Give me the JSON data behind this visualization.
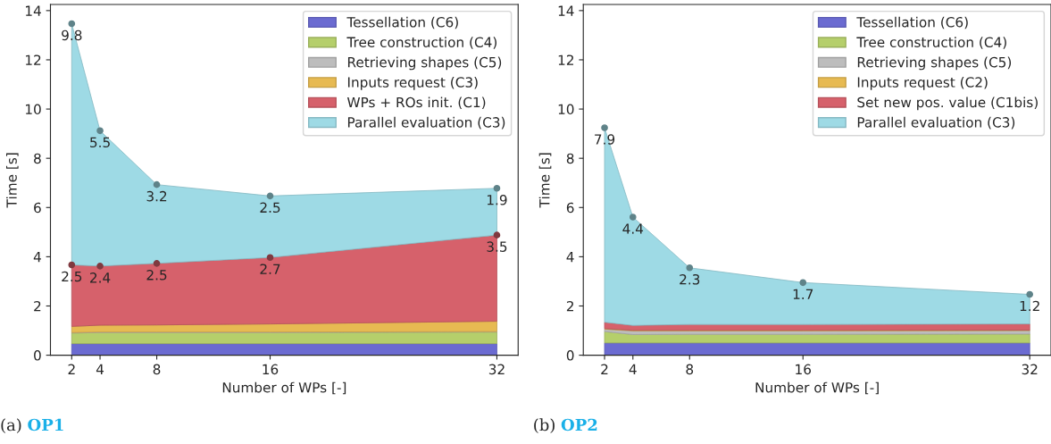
{
  "chart_data": [
    {
      "type": "area",
      "stacked": true,
      "title": "(a) OP1",
      "xlabel": "Number of WPs [-]",
      "ylabel": "Time [s]",
      "x": [
        2,
        4,
        8,
        16,
        32
      ],
      "xlim": [
        0.5,
        33.5
      ],
      "xticks": [
        2,
        4,
        8,
        16,
        32
      ],
      "ylim": [
        0,
        14.25
      ],
      "yticks": [
        0,
        2,
        4,
        6,
        8,
        10,
        12,
        14
      ],
      "legend": "top right",
      "grid": false,
      "series": [
        {
          "name": "Tessellation (C6)",
          "color": "#6b6bd1",
          "values": [
            0.47,
            0.47,
            0.47,
            0.47,
            0.47
          ]
        },
        {
          "name": "Tree construction (C4)",
          "color": "#b5cf6b",
          "values": [
            0.43,
            0.45,
            0.45,
            0.45,
            0.47
          ]
        },
        {
          "name": "Retrieving shapes (C5)",
          "color": "#bdbdbd",
          "values": [
            0.02,
            0.02,
            0.02,
            0.02,
            0.02
          ]
        },
        {
          "name": "Inputs request (C3)",
          "color": "#e7ba52",
          "values": [
            0.25,
            0.28,
            0.29,
            0.33,
            0.42
          ]
        },
        {
          "name": "WPs + ROs init. (C1)",
          "color": "#d6616b",
          "values": [
            2.5,
            2.4,
            2.5,
            2.7,
            3.5
          ],
          "value_labels": [
            "2.5",
            "2.4",
            "2.5",
            "2.7",
            "3.5"
          ],
          "marker": "circle"
        },
        {
          "name": "Parallel evaluation (C3)",
          "color": "#9edae5",
          "values": [
            9.8,
            5.5,
            3.2,
            2.5,
            1.9
          ],
          "value_labels": [
            "9.8",
            "5.5",
            "3.2",
            "2.5",
            "1.9"
          ],
          "marker": "circle"
        }
      ]
    },
    {
      "type": "area",
      "stacked": true,
      "title": "(b) OP2",
      "xlabel": "Number of WPs [-]",
      "ylabel": "Time [s]",
      "x": [
        2,
        4,
        8,
        16,
        32
      ],
      "xlim": [
        0.5,
        33.5
      ],
      "xticks": [
        2,
        4,
        8,
        16,
        32
      ],
      "ylim": [
        0,
        14.25
      ],
      "yticks": [
        0,
        2,
        4,
        6,
        8,
        10,
        12,
        14
      ],
      "legend": "top right",
      "grid": false,
      "series": [
        {
          "name": "Tessellation (C6)",
          "color": "#6b6bd1",
          "values": [
            0.5,
            0.5,
            0.5,
            0.5,
            0.5
          ]
        },
        {
          "name": "Tree construction (C4)",
          "color": "#b5cf6b",
          "values": [
            0.46,
            0.34,
            0.35,
            0.35,
            0.36
          ]
        },
        {
          "name": "Retrieving shapes (C5)",
          "color": "#bdbdbd",
          "values": [
            0.1,
            0.15,
            0.14,
            0.14,
            0.14
          ]
        },
        {
          "name": "Inputs request (C2)",
          "color": "#e7ba52",
          "values": [
            0.02,
            0.02,
            0.02,
            0.02,
            0.02
          ]
        },
        {
          "name": "Set new pos. value (C1bis)",
          "color": "#d6616b",
          "values": [
            0.26,
            0.2,
            0.24,
            0.24,
            0.25
          ]
        },
        {
          "name": "Parallel evaluation (C3)",
          "color": "#9edae5",
          "values": [
            7.9,
            4.4,
            2.3,
            1.7,
            1.2
          ],
          "value_labels": [
            "7.9",
            "4.4",
            "2.3",
            "1.7",
            "1.2"
          ],
          "marker": "circle"
        }
      ]
    }
  ]
}
